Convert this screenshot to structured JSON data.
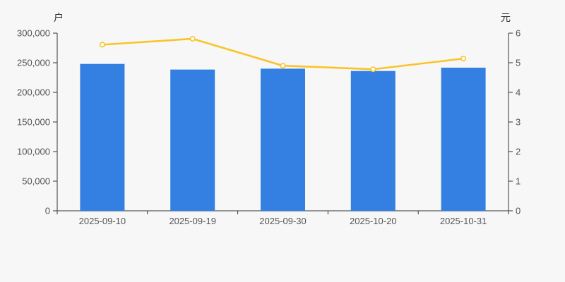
{
  "page": {
    "background": "#f7f7f7"
  },
  "chart_data": {
    "type": "bar",
    "title": "",
    "xlabel": "",
    "ylabel_left": "户",
    "ylabel_right": "元",
    "grid": false,
    "legend": false,
    "categories": [
      "2025-09-10",
      "2025-09-19",
      "2025-09-30",
      "2025-10-20",
      "2025-10-31"
    ],
    "series": [
      {
        "name": "户",
        "kind": "bar",
        "axis": "left",
        "color": "#3380e2",
        "values": [
          248000,
          238500,
          240000,
          236100,
          241700
        ]
      },
      {
        "name": "元",
        "kind": "line",
        "axis": "right",
        "color": "#fac428",
        "marker_fill": "#ffffff",
        "values": [
          5.61,
          5.81,
          4.9,
          4.78,
          5.14
        ]
      }
    ],
    "left_axis": {
      "unit": "户",
      "min": 0,
      "max": 300000,
      "tick_step": 50000,
      "tick_labels": [
        "0",
        "50,000",
        "100,000",
        "150,000",
        "200,000",
        "250,000",
        "300,000"
      ]
    },
    "right_axis": {
      "unit": "元",
      "min": 0,
      "max": 6,
      "tick_step": 1,
      "tick_labels": [
        "0",
        "1",
        "2",
        "3",
        "4",
        "5",
        "6"
      ]
    },
    "axis_color": "#333333",
    "tick_label_color": "#555555"
  }
}
